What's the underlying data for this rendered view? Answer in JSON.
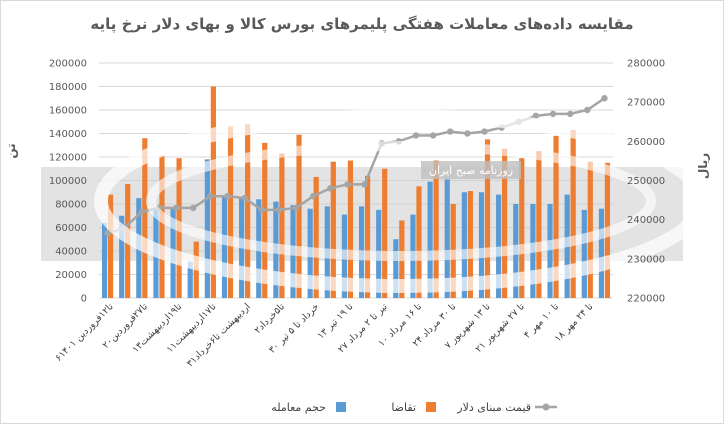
{
  "chart_data": {
    "type": "bar",
    "title": "مقایسه داده‌های معاملات هفتگی پلیمرهای بورس کالا و بهای دلار نرخ پایه",
    "ylabel_left": "تن",
    "ylabel_right": "ریال",
    "ylim_left": [
      0,
      200000
    ],
    "ylim_right": [
      220000,
      280000
    ],
    "yticks_left": [
      "0",
      "20000",
      "40000",
      "60000",
      "80000",
      "100000",
      "120000",
      "140000",
      "160000",
      "180000",
      "200000"
    ],
    "yticks_right": [
      "220000",
      "230000",
      "240000",
      "250000",
      "260000",
      "270000",
      "280000"
    ],
    "categories": [
      "۶تا۱۲فروردین ۱۴۰۱",
      "",
      "۲۰تا۲۷فروردین",
      "",
      "۱۳تا۱۹اردیبهشت",
      "",
      "۱۱تا۱۷اردیبهشت",
      "",
      "۳۱اردیبهشت تا۶خرداد",
      "",
      "۲تا۵خرداد",
      "",
      "۳۰ خرداد تا ۵ تیر",
      "",
      "۱۳ تا ۱۹ تیر",
      "",
      "۲۷ تیر تا ۲ مرداد",
      "",
      "۱۰ تا ۱۶ مرداد",
      "",
      "۲۴ تا ۳۰ مرداد",
      "",
      "۷ تا ۱۳ شهریور",
      "",
      "۲۱ تا ۲۷ شهریور",
      "",
      "۴ تا ۱۰ مهر",
      "",
      "۱۸ تا ۲۴ مهر",
      ""
    ],
    "series": [
      {
        "name": "حجم معامله",
        "color": "#5B9BD5",
        "axis": "left",
        "values": [
          64000,
          70000,
          85000,
          77000,
          76000,
          31000,
          118000,
          86000,
          86000,
          84000,
          82000,
          79000,
          76000,
          78000,
          71000,
          78000,
          75000,
          50000,
          71000,
          99000,
          101000,
          90000,
          90000,
          88000,
          80000,
          80000,
          80000,
          88000,
          75000,
          76000
        ]
      },
      {
        "name": "تقاضا",
        "color": "#ED7D31",
        "axis": "left",
        "values": [
          88000,
          97000,
          136000,
          121000,
          119000,
          48000,
          180000,
          146000,
          148000,
          132000,
          123000,
          139000,
          103000,
          116000,
          117000,
          104000,
          110000,
          66000,
          95000,
          117000,
          80000,
          91000,
          135000,
          127000,
          119000,
          125000,
          138000,
          143000,
          116000,
          115000
        ]
      },
      {
        "name": "قیمت مبنای دلار",
        "color": "#A5A5A5",
        "axis": "right",
        "type": "line",
        "values": [
          236500,
          238000,
          242000,
          243000,
          243000,
          243000,
          246000,
          246000,
          245500,
          242500,
          242500,
          243000,
          246000,
          248000,
          249000,
          249000,
          259500,
          260000,
          261500,
          261500,
          262500,
          262000,
          262500,
          263500,
          265000,
          266500,
          267000,
          267000,
          268000,
          271000
        ]
      }
    ],
    "watermark": "روزنامه صبح ایران",
    "legend_position": "bottom"
  }
}
